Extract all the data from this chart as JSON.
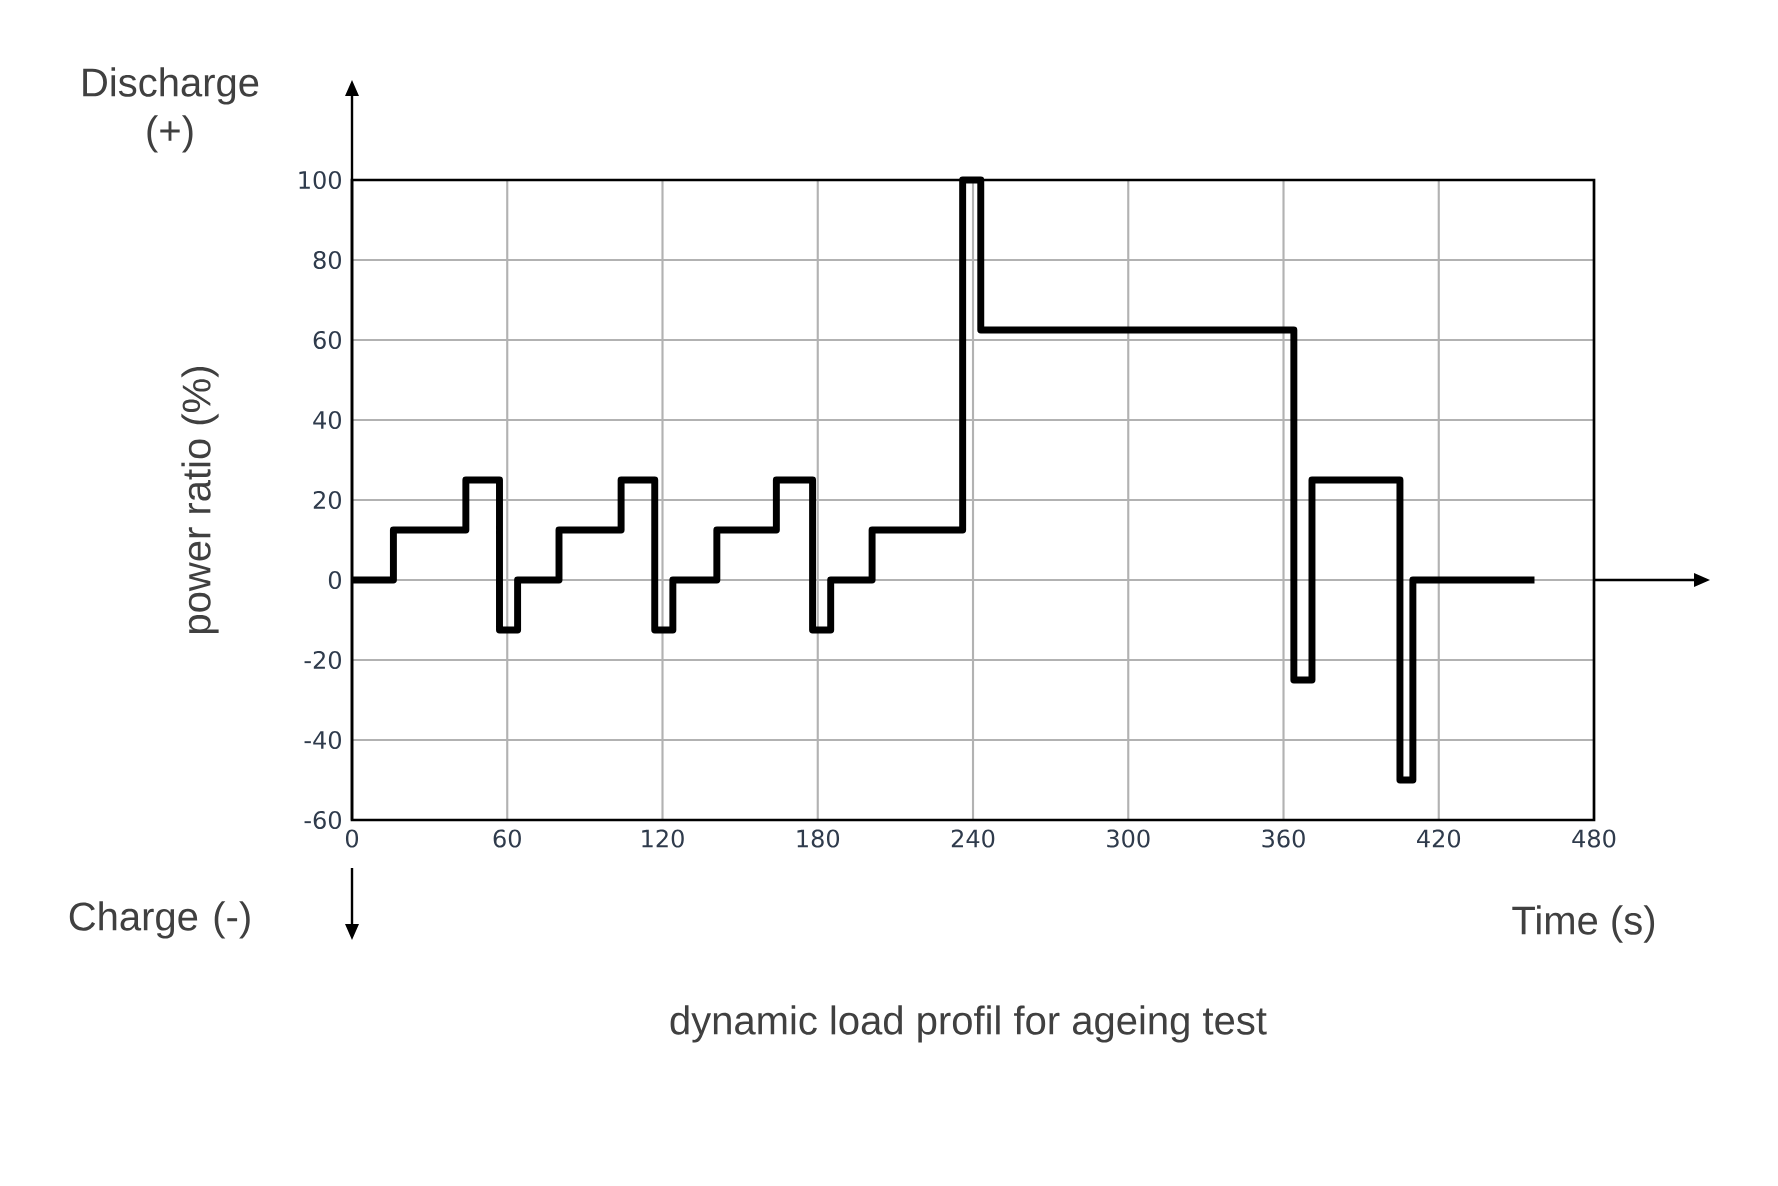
{
  "chart_data": {
    "type": "step",
    "title": "dynamic load profil for ageing test",
    "xlabel": "Time (s)",
    "ylabel": "power ratio (%)",
    "annotations": [
      "Discharge (+)",
      "Charge (-)"
    ],
    "x": [
      0,
      16,
      44,
      57,
      64,
      80,
      104,
      117,
      124,
      141,
      164,
      178,
      185,
      201,
      236,
      243,
      364,
      371,
      405,
      410,
      457
    ],
    "series": [
      {
        "color": "#000000",
        "values": [
          0,
          12.5,
          25,
          -12.5,
          0,
          12.5,
          25,
          -12.5,
          0,
          12.5,
          25,
          -12.5,
          0,
          12.5,
          100,
          62.5,
          -25,
          25,
          -50,
          0,
          0
        ]
      }
    ],
    "xlim": [
      0,
      480
    ],
    "ylim": [
      -60,
      100
    ],
    "xticks": [
      0,
      60,
      120,
      180,
      240,
      300,
      360,
      420,
      480
    ],
    "yticks": [
      -60,
      -40,
      -20,
      0,
      20,
      40,
      60,
      80,
      100
    ],
    "grid": true,
    "line_style": "solid",
    "marker": "none"
  }
}
